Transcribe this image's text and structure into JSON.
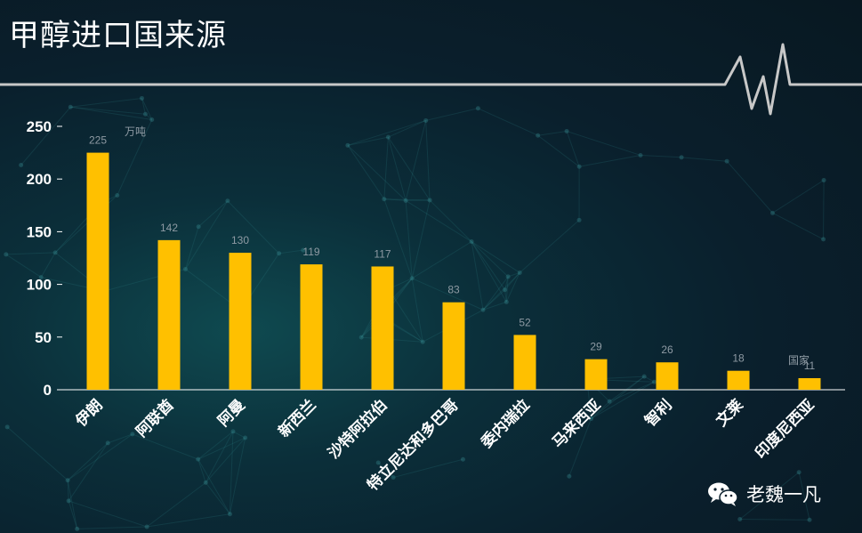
{
  "title": "甲醇进口国来源",
  "watermark": "老魏一凡",
  "colors": {
    "bar": "#FFC000",
    "axis": "#ffffff",
    "data_label": "#8e9aa3",
    "line": "#c8c8c8"
  },
  "chart_data": {
    "type": "bar",
    "categories": [
      "伊朗",
      "阿联酋",
      "阿曼",
      "新西兰",
      "沙特阿拉伯",
      "特立尼达和多巴哥",
      "委内瑞拉",
      "马来西亚",
      "智利",
      "文莱",
      "印度尼西亚"
    ],
    "values": [
      225,
      142,
      130,
      119,
      117,
      83,
      52,
      29,
      26,
      18,
      11
    ],
    "ylabel": "万吨",
    "xlabel": "国家",
    "ylim": [
      0,
      250
    ],
    "yticks": [
      0,
      50,
      100,
      150,
      200,
      250
    ],
    "grid": false,
    "data_labels": true
  }
}
